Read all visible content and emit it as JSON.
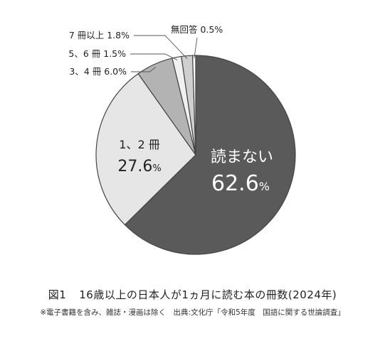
{
  "chart_data": {
    "type": "pie",
    "start": "top",
    "direction": "clockwise",
    "slices": [
      {
        "key": "none",
        "label": "読まない",
        "value": 62.6,
        "display": "62.6",
        "unit": "%",
        "color": "#5a5a5a",
        "placement": "inside-large"
      },
      {
        "key": "one_two",
        "label": "1、2 冊",
        "value": 27.6,
        "display": "27.6",
        "unit": "%",
        "color": "#e6e6e6",
        "placement": "inside"
      },
      {
        "key": "three_four",
        "label": "3、4 冊",
        "value": 6.0,
        "display": "6.0%",
        "color": "#b3b3b3",
        "placement": "outside"
      },
      {
        "key": "five_six",
        "label": "5、6 冊",
        "value": 1.5,
        "display": "1.5%",
        "color": "#f0f0f0",
        "placement": "outside"
      },
      {
        "key": "seven_plus",
        "label": "7 冊以上",
        "value": 1.8,
        "display": "1.8%",
        "color": "#cfcfcf",
        "placement": "outside"
      },
      {
        "key": "no_answer",
        "label": "無回答",
        "value": 0.5,
        "display": "0.5%",
        "color": "#ffffff",
        "placement": "outside"
      }
    ]
  },
  "caption": {
    "figure_number": "図1",
    "figure_title": "16歳以上の日本人が1ヵ月に読む本の冊数(2024年)",
    "note": "※電子書籍を含み、雑誌・漫画は除く　出典:文化庁「令和5年度　国語に関する世論調査」"
  }
}
